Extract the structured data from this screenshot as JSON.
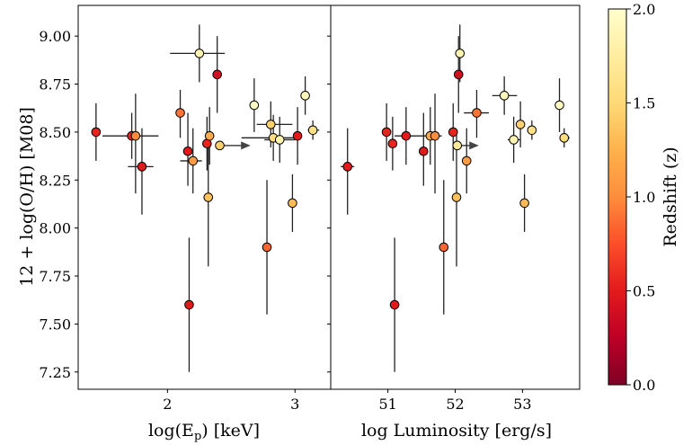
{
  "chart_data": [
    {
      "type": "scatter",
      "xlabel": "log(E_p) [keV]",
      "ylabel": "12 + log(O/H) [M08]",
      "xlim": [
        1.3,
        3.28
      ],
      "ylim": [
        7.16,
        9.16
      ],
      "xticks": [
        2,
        3
      ],
      "yticks": [
        7.25,
        7.5,
        7.75,
        8.0,
        8.25,
        8.5,
        8.75,
        9.0
      ],
      "ytick_labels": [
        "7.25",
        "7.50",
        "7.75",
        "8.00",
        "8.25",
        "8.50",
        "8.75",
        "9.00"
      ],
      "points": [
        {
          "x": 1.44,
          "y": 8.5,
          "z": 0.55,
          "ylo": 8.35,
          "yhi": 8.65
        },
        {
          "x": 1.72,
          "y": 8.48,
          "z": 0.55,
          "xlo": 1.49,
          "xhi": 1.93,
          "ylo": 8.36,
          "yhi": 8.6
        },
        {
          "x": 1.75,
          "y": 8.48,
          "z": 1.0,
          "ylo": 8.18,
          "yhi": 8.7
        },
        {
          "x": 1.8,
          "y": 8.32,
          "z": 0.5,
          "xlo": 1.69,
          "xhi": 1.89,
          "ylo": 8.07,
          "yhi": 8.52
        },
        {
          "x": 2.1,
          "y": 8.6,
          "z": 0.9,
          "ylo": 8.47,
          "yhi": 8.72
        },
        {
          "x": 2.16,
          "y": 8.4,
          "z": 0.5,
          "ylo": 8.22,
          "yhi": 8.6
        },
        {
          "x": 2.17,
          "y": 7.6,
          "z": 0.5,
          "ylo": 7.25,
          "yhi": 7.95
        },
        {
          "x": 2.2,
          "y": 8.35,
          "z": 1.1,
          "xlo": 2.1,
          "xhi": 2.27,
          "ylo": 8.18,
          "yhi": 8.52
        },
        {
          "x": 2.25,
          "y": 8.91,
          "z": 1.85,
          "xlo": 2.02,
          "xhi": 2.45,
          "ylo": 8.76,
          "yhi": 9.06
        },
        {
          "x": 2.31,
          "y": 8.44,
          "z": 0.55,
          "ylo": 8.3,
          "yhi": 8.58
        },
        {
          "x": 2.32,
          "y": 8.16,
          "z": 1.35,
          "ylo": 7.8,
          "yhi": 8.5
        },
        {
          "x": 2.33,
          "y": 8.48,
          "z": 1.2,
          "ylo": 8.33,
          "yhi": 8.63
        },
        {
          "x": 2.39,
          "y": 8.8,
          "z": 0.4,
          "ylo": 8.6,
          "yhi": 9.0
        },
        {
          "x": 2.41,
          "y": 8.43,
          "z": 1.45,
          "xarrow": 2.64
        },
        {
          "x": 2.68,
          "y": 8.64,
          "z": 1.95,
          "ylo": 8.5,
          "yhi": 8.78
        },
        {
          "x": 2.78,
          "y": 7.9,
          "z": 0.85,
          "ylo": 7.55,
          "yhi": 8.25
        },
        {
          "x": 2.81,
          "y": 8.54,
          "z": 1.45,
          "xlo": 2.7,
          "xhi": 2.98,
          "ylo": 8.42,
          "yhi": 8.66
        },
        {
          "x": 2.83,
          "y": 8.47,
          "z": 1.55,
          "xlo": 2.58,
          "xhi": 3.0,
          "ylo": 8.35,
          "yhi": 8.59
        },
        {
          "x": 2.88,
          "y": 8.46,
          "z": 1.85,
          "xlo": 2.76,
          "xhi": 3.0,
          "ylo": 8.34,
          "yhi": 8.58
        },
        {
          "x": 2.98,
          "y": 8.13,
          "z": 1.3,
          "ylo": 7.98,
          "yhi": 8.28
        },
        {
          "x": 3.02,
          "y": 8.48,
          "z": 0.5,
          "ylo": 8.33,
          "yhi": 8.63
        },
        {
          "x": 3.08,
          "y": 8.69,
          "z": 1.9,
          "ylo": 8.59,
          "yhi": 8.79
        },
        {
          "x": 3.14,
          "y": 8.51,
          "z": 1.6,
          "xlo": 3.1,
          "xhi": 3.19,
          "ylo": 8.46,
          "yhi": 8.56
        }
      ]
    },
    {
      "type": "scatter",
      "xlabel": "log Luminosity [erg/s]",
      "ylabel": "",
      "xlim": [
        50.15,
        53.85
      ],
      "ylim": [
        7.16,
        9.16
      ],
      "xticks": [
        51,
        52,
        53
      ],
      "points": [
        {
          "x": 50.4,
          "y": 8.32,
          "z": 0.5,
          "xlo": 50.3,
          "xhi": 50.5,
          "ylo": 8.07,
          "yhi": 8.52
        },
        {
          "x": 50.98,
          "y": 8.5,
          "z": 0.55,
          "ylo": 8.35,
          "yhi": 8.65
        },
        {
          "x": 51.07,
          "y": 8.44,
          "z": 0.55,
          "ylo": 8.3,
          "yhi": 8.58
        },
        {
          "x": 51.1,
          "y": 7.6,
          "z": 0.5,
          "ylo": 7.25,
          "yhi": 7.95
        },
        {
          "x": 51.27,
          "y": 8.48,
          "z": 0.5,
          "xlo": 51.1,
          "xhi": 51.42,
          "ylo": 8.33,
          "yhi": 8.63
        },
        {
          "x": 51.53,
          "y": 8.4,
          "z": 0.5,
          "ylo": 8.22,
          "yhi": 8.6
        },
        {
          "x": 51.63,
          "y": 8.48,
          "z": 1.2,
          "xlo": 51.42,
          "xhi": 51.8,
          "ylo": 8.33,
          "yhi": 8.63
        },
        {
          "x": 51.7,
          "y": 8.48,
          "z": 1.0,
          "ylo": 8.18,
          "yhi": 8.7
        },
        {
          "x": 51.83,
          "y": 7.9,
          "z": 0.85,
          "ylo": 7.55,
          "yhi": 8.25
        },
        {
          "x": 51.97,
          "y": 8.5,
          "z": 0.55,
          "ylo": 8.35,
          "yhi": 8.65
        },
        {
          "x": 52.02,
          "y": 8.16,
          "z": 1.35,
          "ylo": 7.8,
          "yhi": 8.5
        },
        {
          "x": 52.03,
          "y": 8.43,
          "z": 1.7,
          "xarrow": 52.33
        },
        {
          "x": 52.05,
          "y": 8.8,
          "z": 0.4,
          "xlo": 51.99,
          "xhi": 52.1,
          "ylo": 8.6,
          "yhi": 9.0
        },
        {
          "x": 52.07,
          "y": 8.91,
          "z": 1.85,
          "ylo": 8.76,
          "yhi": 9.06
        },
        {
          "x": 52.17,
          "y": 8.35,
          "z": 1.1,
          "ylo": 8.18,
          "yhi": 8.52
        },
        {
          "x": 52.32,
          "y": 8.6,
          "z": 0.9,
          "xlo": 52.13,
          "xhi": 52.5,
          "ylo": 8.47,
          "yhi": 8.72
        },
        {
          "x": 52.73,
          "y": 8.69,
          "z": 1.9,
          "xlo": 52.55,
          "xhi": 52.92,
          "ylo": 8.59,
          "yhi": 8.79
        },
        {
          "x": 52.87,
          "y": 8.46,
          "z": 1.85,
          "xlo": 52.78,
          "xhi": 52.97,
          "ylo": 8.34,
          "yhi": 8.58
        },
        {
          "x": 52.97,
          "y": 8.54,
          "z": 1.45,
          "ylo": 8.42,
          "yhi": 8.66
        },
        {
          "x": 53.03,
          "y": 8.13,
          "z": 1.3,
          "ylo": 7.98,
          "yhi": 8.28
        },
        {
          "x": 53.14,
          "y": 8.51,
          "z": 1.6,
          "ylo": 8.46,
          "yhi": 8.56
        },
        {
          "x": 53.55,
          "y": 8.64,
          "z": 1.95,
          "ylo": 8.5,
          "yhi": 8.78
        },
        {
          "x": 53.62,
          "y": 8.47,
          "z": 1.55,
          "xlo": 53.55,
          "xhi": 53.7,
          "ylo": 8.42,
          "yhi": 8.52
        }
      ]
    }
  ],
  "colorbar": {
    "label": "Redshift (z)",
    "range": [
      0.0,
      2.0
    ],
    "ticks": [
      0.0,
      0.5,
      1.0,
      1.5,
      2.0
    ],
    "tick_labels": [
      "0.0",
      "0.5",
      "1.0",
      "1.5",
      "2.0"
    ],
    "colormap": "YlOrRd_r",
    "stops": [
      "#800026",
      "#bd0026",
      "#e31a1c",
      "#fc4e2a",
      "#fd8d3c",
      "#feb24c",
      "#fed976",
      "#ffeda0",
      "#ffffcc"
    ]
  },
  "colors": {
    "errorbar": "#222222",
    "marker_edge": "#000000",
    "arrow": "#444444"
  }
}
